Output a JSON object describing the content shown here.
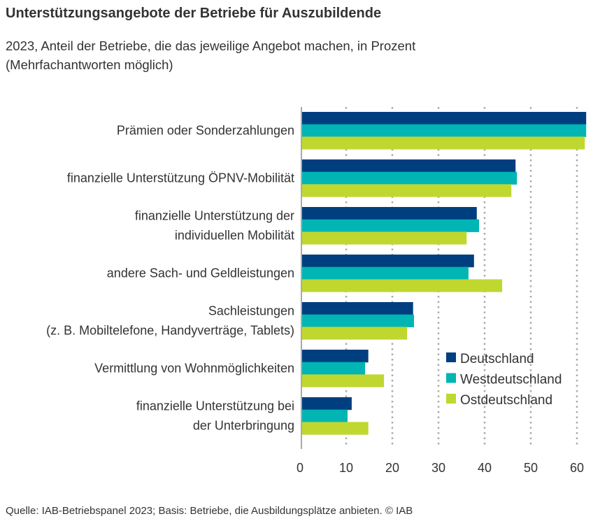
{
  "chart_data": {
    "type": "bar",
    "orientation": "horizontal",
    "title": "Unterstützungsangebote der Betriebe für Auszubildende",
    "subtitle": "2023, Anteil der Betriebe, die das jeweilige Angebot machen, in Prozent (Mehrfachantworten möglich)",
    "categories": [
      [
        "Prämien oder Sonderzahlungen"
      ],
      [
        "finanzielle Unterstützung ÖPNV-Mobilität"
      ],
      [
        "finanzielle Unterstützung der",
        "individuellen Mobilität"
      ],
      [
        "andere Sach- und Geldleistungen"
      ],
      [
        "Sachleistungen",
        "(z. B. Mobiltelefone, Handyverträge, Tablets)"
      ],
      [
        "Vermittlung von Wohnmöglichkeiten"
      ],
      [
        "finanzielle Unterstützung bei",
        "der Unterbringung"
      ]
    ],
    "series": [
      {
        "name": "Deutschland",
        "color": "#003f7f",
        "values": [
          62.0,
          46.7,
          38.3,
          37.7,
          24.5,
          14.8,
          11.2
        ]
      },
      {
        "name": "Westdeutschland",
        "color": "#00b5b3",
        "values": [
          62.0,
          47.0,
          38.8,
          36.5,
          24.7,
          14.1,
          10.3
        ]
      },
      {
        "name": "Ostdeutschland",
        "color": "#c0d72f",
        "values": [
          61.7,
          45.8,
          36.1,
          43.8,
          23.2,
          18.2,
          14.8
        ]
      }
    ],
    "xlim": [
      0,
      62
    ],
    "xticks": [
      "0",
      "10",
      "20",
      "30",
      "40",
      "50",
      "60"
    ],
    "grid": true,
    "legend": "bottom-right",
    "source": "Quelle: IAB-Betriebspanel 2023; Basis: Betriebe, die Ausbildungsplätze anbieten.  © IAB"
  }
}
